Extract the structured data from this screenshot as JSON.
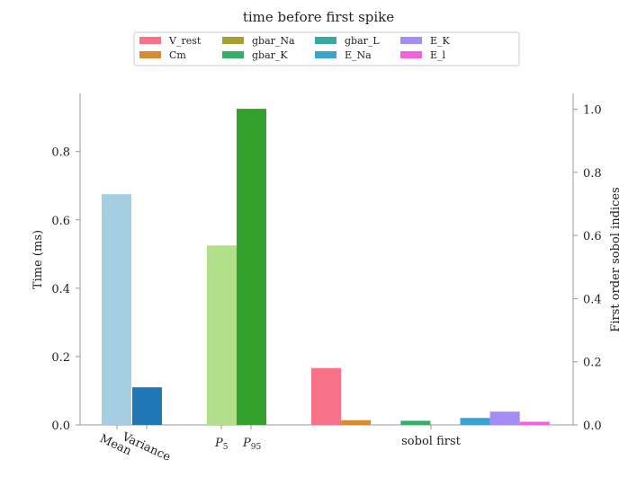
{
  "chart_data": {
    "type": "bar",
    "title": "time before first spike",
    "left_axis": {
      "label": "Time (ms)",
      "ylim": [
        0,
        0.97
      ],
      "ticks": [
        "0.0",
        "0.2",
        "0.4",
        "0.6",
        "0.8"
      ],
      "tick_values": [
        0.0,
        0.2,
        0.4,
        0.6,
        0.8
      ]
    },
    "right_axis": {
      "label": "First order sobol indices",
      "ylim": [
        0,
        1.05
      ],
      "ticks": [
        "0.0",
        "0.2",
        "0.4",
        "0.6",
        "0.8",
        "1.0"
      ],
      "tick_values": [
        0.0,
        0.2,
        0.4,
        0.6,
        0.8,
        1.0
      ]
    },
    "x_tick_labels": {
      "mean": "Mean",
      "variance": "Variance",
      "p5_base": "P",
      "p5_sub": "5",
      "p95_base": "P",
      "p95_sub": "95",
      "sobol": "sobol first"
    },
    "statistics": [
      {
        "name": "Mean",
        "value": 0.675,
        "color": "#a6cee3",
        "axis": "left"
      },
      {
        "name": "Variance",
        "value": 0.11,
        "color": "#1f78b4",
        "axis": "left"
      },
      {
        "name": "P5",
        "value": 0.525,
        "color": "#b2df8a",
        "axis": "left"
      },
      {
        "name": "P95",
        "value": 0.925,
        "color": "#33a02c",
        "axis": "left"
      }
    ],
    "series": [
      {
        "name": "V_rest",
        "value": 0.18,
        "color": "#f77189"
      },
      {
        "name": "Cm",
        "value": 0.015,
        "color": "#d58c32"
      },
      {
        "name": "gbar_Na",
        "value": 0.0,
        "color": "#a4a031"
      },
      {
        "name": "gbar_K",
        "value": 0.013,
        "color": "#36ad68"
      },
      {
        "name": "gbar_L",
        "value": 0.0,
        "color": "#38a9a0"
      },
      {
        "name": "E_Na",
        "value": 0.022,
        "color": "#3ba3d0"
      },
      {
        "name": "E_K",
        "value": 0.042,
        "color": "#a38cf4"
      },
      {
        "name": "E_l",
        "value": 0.01,
        "color": "#f461dd"
      }
    ],
    "legend_placement": "top-center",
    "grid": false
  }
}
